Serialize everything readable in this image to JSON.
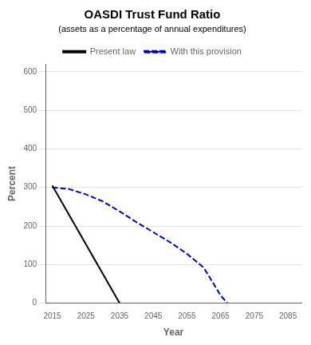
{
  "chart_data": {
    "type": "line",
    "title": "OASDI Trust Fund Ratio",
    "subtitle": "(assets as a percentage of annual expenditures)",
    "xlabel": "Year",
    "ylabel": "Percent",
    "xlim": [
      2013,
      2089
    ],
    "ylim": [
      0,
      620
    ],
    "xticks": [
      2015,
      2025,
      2035,
      2045,
      2055,
      2065,
      2075,
      2085
    ],
    "yticks": [
      0,
      100,
      200,
      300,
      400,
      500,
      600
    ],
    "grid": "y",
    "legend": "top",
    "series": [
      {
        "name": "Present law",
        "color": "#000000",
        "line_style": "solid",
        "x": [
          2015,
          2035
        ],
        "values": [
          305,
          0
        ]
      },
      {
        "name": "With this provision",
        "color": "#0000cc",
        "line_style": "dashed",
        "x": [
          2015,
          2020,
          2025,
          2030,
          2035,
          2040,
          2045,
          2050,
          2055,
          2060,
          2065,
          2067
        ],
        "values": [
          300,
          296,
          282,
          264,
          238,
          210,
          184,
          158,
          128,
          92,
          20,
          0
        ]
      }
    ]
  }
}
